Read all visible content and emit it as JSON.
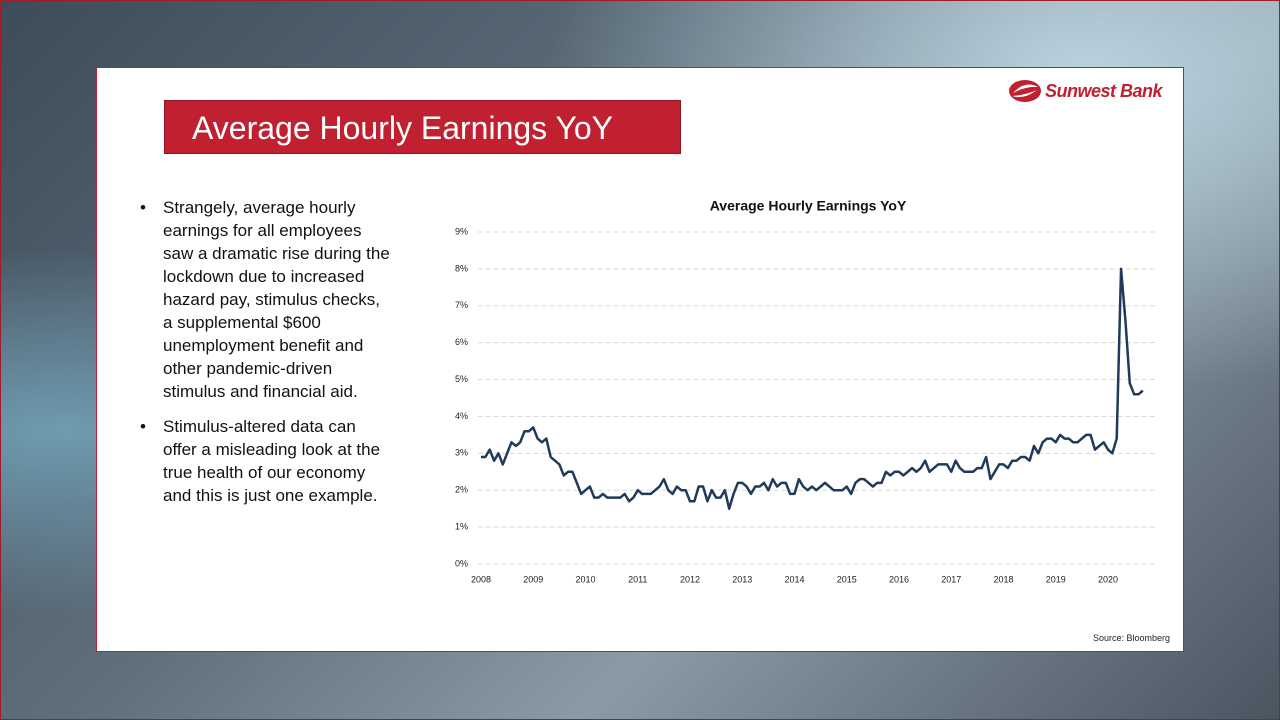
{
  "slide": {
    "title": "Average Hourly Earnings YoY",
    "logo": "Sunwest Bank",
    "bullets": [
      "Strangely, average hourly earnings for all employees saw a dramatic rise during the lockdown due to increased hazard pay, stimulus checks, a supplemental $600 unemployment benefit and other pandemic-driven stimulus and financial aid.",
      "Stimulus-altered data can offer a misleading look at the true health of our economy and this is just one example."
    ],
    "source": "Source: Bloomberg"
  },
  "chart_data": {
    "type": "line",
    "title": "Average Hourly Earnings YoY",
    "categories": [
      "2008",
      null,
      null,
      null,
      null,
      null,
      null,
      null,
      null,
      null,
      null,
      null,
      "2009",
      null,
      null,
      null,
      null,
      null,
      null,
      null,
      null,
      null,
      null,
      null,
      "2010",
      null,
      null,
      null,
      null,
      null,
      null,
      null,
      null,
      null,
      null,
      null,
      "2011",
      null,
      null,
      null,
      null,
      null,
      null,
      null,
      null,
      null,
      null,
      null,
      "2012",
      null,
      null,
      null,
      null,
      null,
      null,
      null,
      null,
      null,
      null,
      null,
      "2013",
      null,
      null,
      null,
      null,
      null,
      null,
      null,
      null,
      null,
      null,
      null,
      "2014",
      null,
      null,
      null,
      null,
      null,
      null,
      null,
      null,
      null,
      null,
      null,
      "2015",
      null,
      null,
      null,
      null,
      null,
      null,
      null,
      null,
      null,
      null,
      null,
      "2016",
      null,
      null,
      null,
      null,
      null,
      null,
      null,
      null,
      null,
      null,
      null,
      "2017",
      null,
      null,
      null,
      null,
      null,
      null,
      null,
      null,
      null,
      null,
      null,
      "2018",
      null,
      null,
      null,
      null,
      null,
      null,
      null,
      null,
      null,
      null,
      null,
      "2019",
      null,
      null,
      null,
      null,
      null,
      null,
      null,
      null,
      null,
      null,
      null,
      "2020",
      null,
      null,
      null,
      null,
      null,
      null,
      null,
      null
    ],
    "values": [
      2.9,
      2.9,
      3.1,
      2.8,
      3.0,
      2.7,
      3.0,
      3.3,
      3.2,
      3.3,
      3.6,
      3.6,
      3.7,
      3.4,
      3.3,
      3.4,
      2.9,
      2.8,
      2.7,
      2.4,
      2.5,
      2.5,
      2.2,
      1.9,
      2.0,
      2.1,
      1.8,
      1.8,
      1.9,
      1.8,
      1.8,
      1.8,
      1.8,
      1.9,
      1.7,
      1.8,
      2.0,
      1.9,
      1.9,
      1.9,
      2.0,
      2.1,
      2.3,
      2.0,
      1.9,
      2.1,
      2.0,
      2.0,
      1.7,
      1.7,
      2.1,
      2.1,
      1.7,
      2.0,
      1.8,
      1.8,
      2.0,
      1.5,
      1.9,
      2.2,
      2.2,
      2.1,
      1.9,
      2.1,
      2.1,
      2.2,
      2.0,
      2.3,
      2.1,
      2.2,
      2.2,
      1.9,
      1.9,
      2.3,
      2.1,
      2.0,
      2.1,
      2.0,
      2.1,
      2.2,
      2.1,
      2.0,
      2.0,
      2.0,
      2.1,
      1.9,
      2.2,
      2.3,
      2.3,
      2.2,
      2.1,
      2.2,
      2.2,
      2.5,
      2.4,
      2.5,
      2.5,
      2.4,
      2.5,
      2.6,
      2.5,
      2.6,
      2.8,
      2.5,
      2.6,
      2.7,
      2.7,
      2.7,
      2.5,
      2.8,
      2.6,
      2.5,
      2.5,
      2.5,
      2.6,
      2.6,
      2.9,
      2.3,
      2.5,
      2.7,
      2.7,
      2.6,
      2.8,
      2.8,
      2.9,
      2.9,
      2.8,
      3.2,
      3.0,
      3.3,
      3.4,
      3.4,
      3.3,
      3.5,
      3.4,
      3.4,
      3.3,
      3.3,
      3.4,
      3.5,
      3.5,
      3.1,
      3.2,
      3.3,
      3.1,
      3.0,
      3.4,
      8.0,
      6.6,
      4.9,
      4.6,
      4.6,
      4.7
    ],
    "color": "#1f3a5a",
    "ylim": [
      0,
      9
    ],
    "yticks": [
      {
        "value": 0,
        "label": "0%"
      },
      {
        "value": 1,
        "label": "1%"
      },
      {
        "value": 2,
        "label": "2%"
      },
      {
        "value": 3,
        "label": "3%"
      },
      {
        "value": 4,
        "label": "4%"
      },
      {
        "value": 5,
        "label": "5%"
      },
      {
        "value": 6,
        "label": "6%"
      },
      {
        "value": 7,
        "label": "7%"
      },
      {
        "value": 8,
        "label": "8%"
      },
      {
        "value": 9,
        "label": "9%"
      }
    ],
    "grid": true
  }
}
